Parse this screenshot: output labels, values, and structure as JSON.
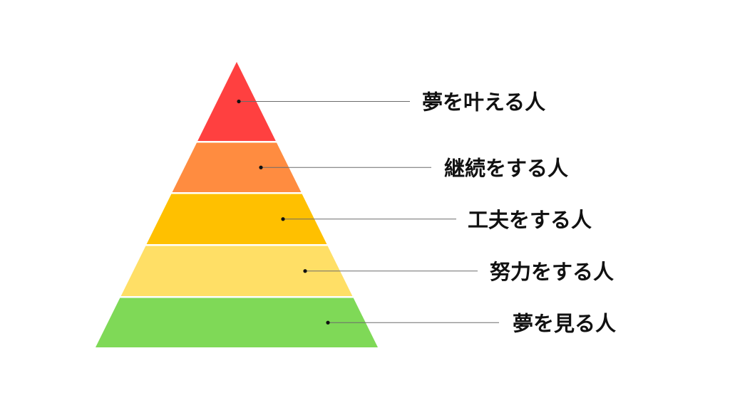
{
  "pyramid": {
    "levels": [
      {
        "label": "夢を叶える人",
        "color": "#FF4040"
      },
      {
        "label": "継続をする人",
        "color": "#FF8C40"
      },
      {
        "label": "工夫をする人",
        "color": "#FFC000"
      },
      {
        "label": "努力をする人",
        "color": "#FFDF66"
      },
      {
        "label": "夢を見る人",
        "color": "#7FD957"
      }
    ]
  }
}
